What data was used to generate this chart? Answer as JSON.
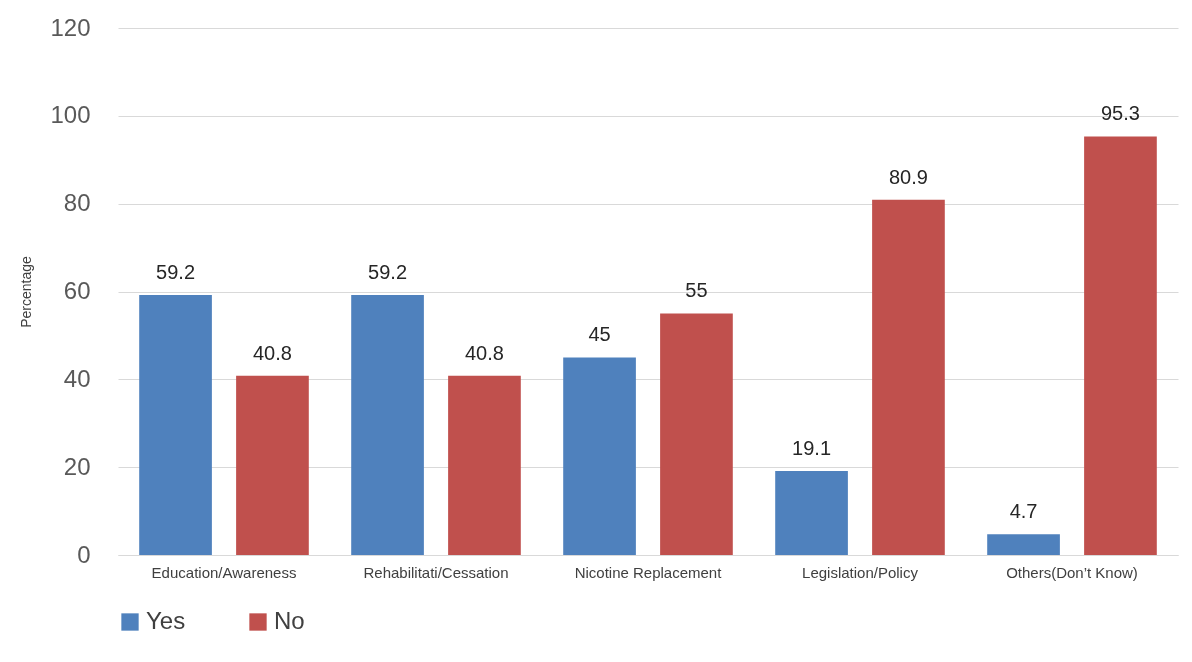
{
  "chart_data": {
    "type": "bar",
    "ylabel": "Percentage",
    "categories": [
      "Education/Awareness",
      "Rehabilitati/Cessation",
      "Nicotine Replacement",
      "Legislation/Policy",
      "Others(Don’t Know)"
    ],
    "series": [
      {
        "name": "Yes",
        "color": "#4f81bd",
        "values": [
          59.2,
          59.2,
          45,
          19.1,
          4.7
        ]
      },
      {
        "name": "No",
        "color": "#c0504d",
        "values": [
          40.8,
          40.8,
          55,
          80.9,
          95.3
        ]
      }
    ],
    "ylim": [
      0,
      120
    ],
    "yticks": [
      0,
      20,
      40,
      60,
      80,
      100,
      120
    ],
    "grid": "y",
    "legend": "bottom",
    "data_labels": true
  }
}
